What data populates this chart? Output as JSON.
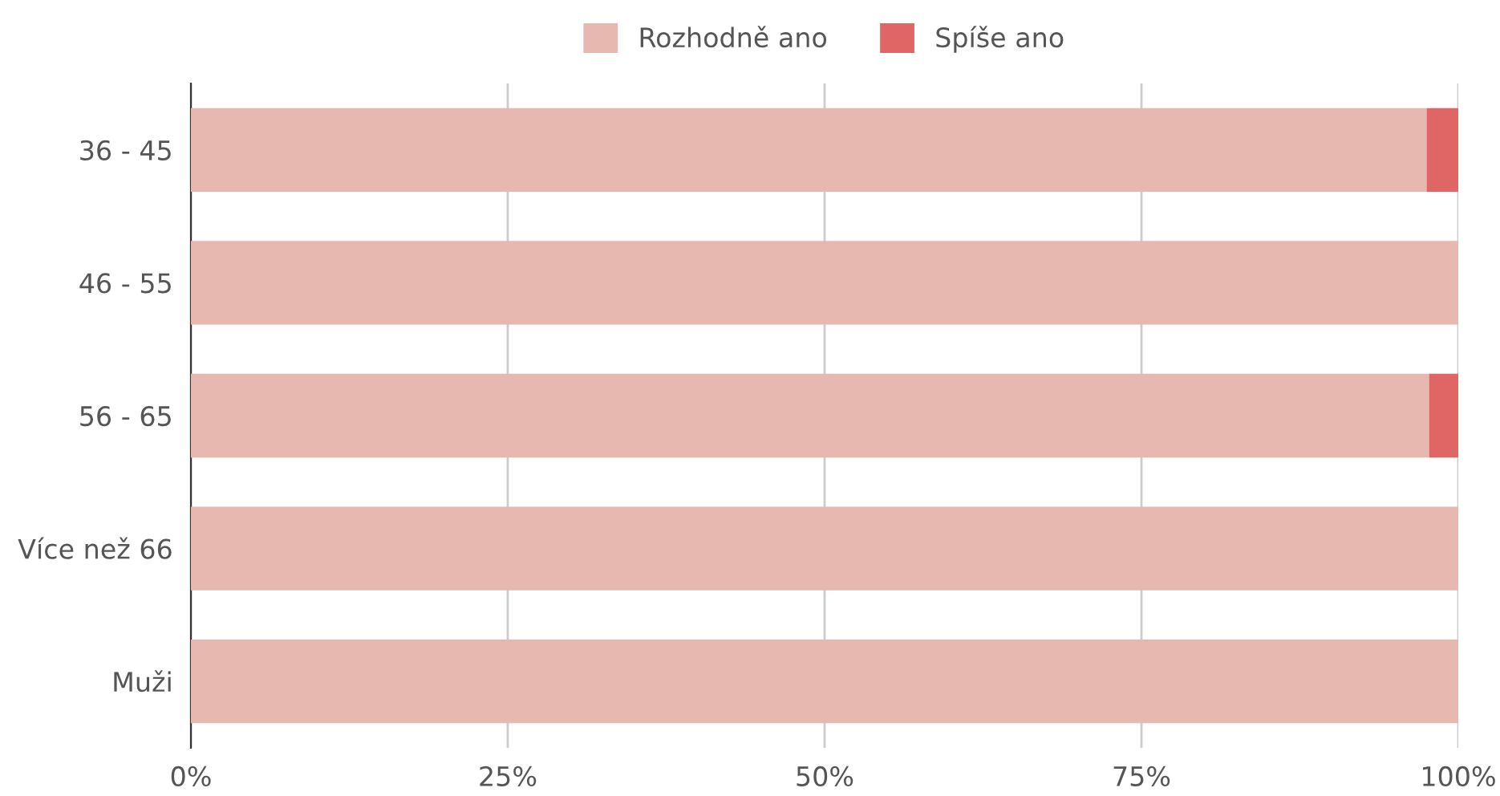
{
  "chart_data": {
    "type": "bar",
    "orientation": "horizontal",
    "stacked": true,
    "categories": [
      "36 - 45",
      "46 - 55",
      "56 - 65",
      "Více než 66",
      "Muži"
    ],
    "series": [
      {
        "name": "Rozhodně ano",
        "color": "#e6b8b0",
        "values": [
          97.5,
          100,
          97.7,
          100,
          100
        ]
      },
      {
        "name": "Spíše ano",
        "color": "#e06666",
        "values": [
          2.5,
          0,
          2.3,
          0,
          0
        ]
      }
    ],
    "xlim": [
      0,
      100
    ],
    "xticks": [
      {
        "value": 0,
        "label": "0%"
      },
      {
        "value": 25,
        "label": "25%"
      },
      {
        "value": 50,
        "label": "50%"
      },
      {
        "value": 75,
        "label": "75%"
      },
      {
        "value": 100,
        "label": "100%"
      }
    ],
    "grid": "x",
    "legend": "top"
  }
}
